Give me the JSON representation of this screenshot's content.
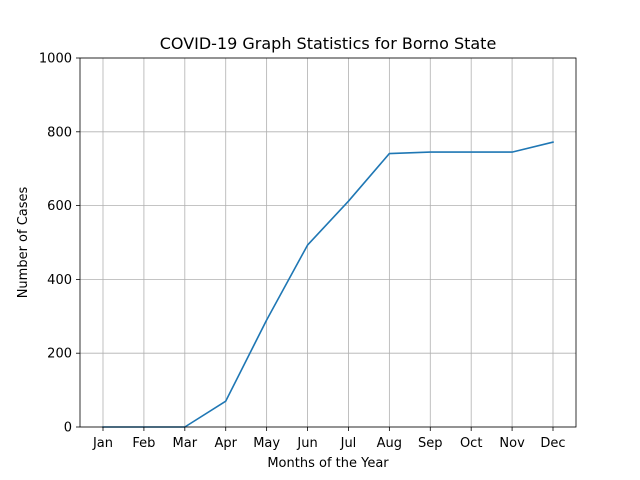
{
  "chart_data": {
    "type": "line",
    "title": "COVID-19 Graph Statistics for Borno State",
    "xlabel": "Months of the Year",
    "ylabel": "Number of Cases",
    "categories": [
      "Jan",
      "Feb",
      "Mar",
      "Apr",
      "May",
      "Jun",
      "Jul",
      "Aug",
      "Sep",
      "Oct",
      "Nov",
      "Dec"
    ],
    "series": [
      {
        "values": [
          0,
          0,
          0,
          70,
          290,
          493,
          612,
          741,
          745,
          745,
          745,
          772
        ],
        "color": "#1f77b4"
      }
    ],
    "ylim": [
      0,
      1000
    ],
    "yticks": [
      "0",
      "200",
      "400",
      "600",
      "800",
      "1000"
    ],
    "grid": true
  }
}
